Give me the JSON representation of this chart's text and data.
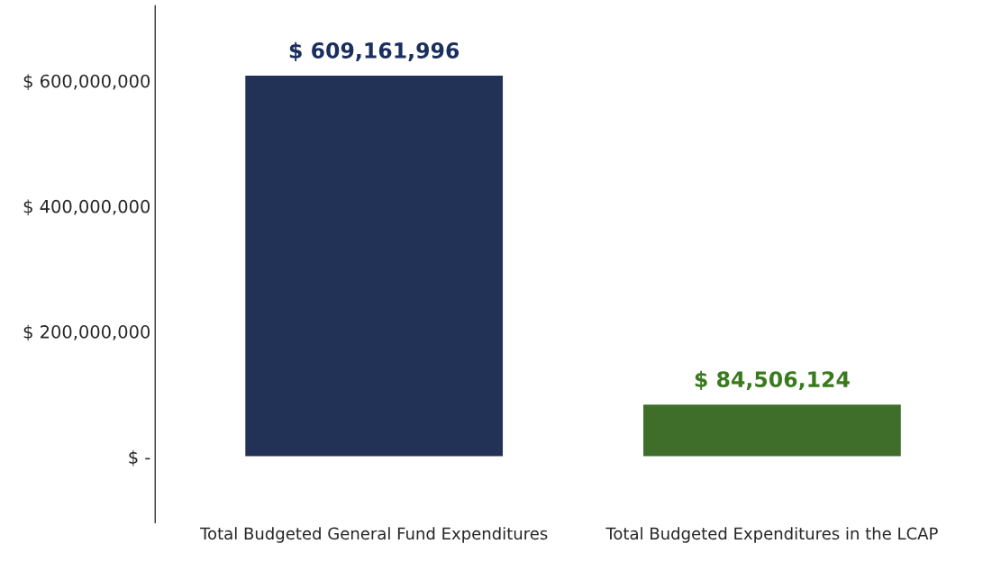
{
  "chart_data": {
    "type": "bar",
    "categories": [
      "Total Budgeted General Fund Expenditures",
      "Total Budgeted Expenditures in the LCAP"
    ],
    "values": [
      609161996,
      84506124
    ],
    "colors": [
      "#1a2f5e",
      "#3a7a1e"
    ],
    "value_labels": [
      "$ 609,161,996",
      "$ 84,506,124"
    ],
    "ylim": [
      -105000000,
      720000000
    ],
    "yticks": [
      {
        "value": 0,
        "label": "$ -"
      },
      {
        "value": 200000000,
        "label": "$ 200,000,000"
      },
      {
        "value": 400000000,
        "label": "$ 400,000,000"
      },
      {
        "value": 600000000,
        "label": "$ 600,000,000"
      }
    ],
    "grid": false
  }
}
